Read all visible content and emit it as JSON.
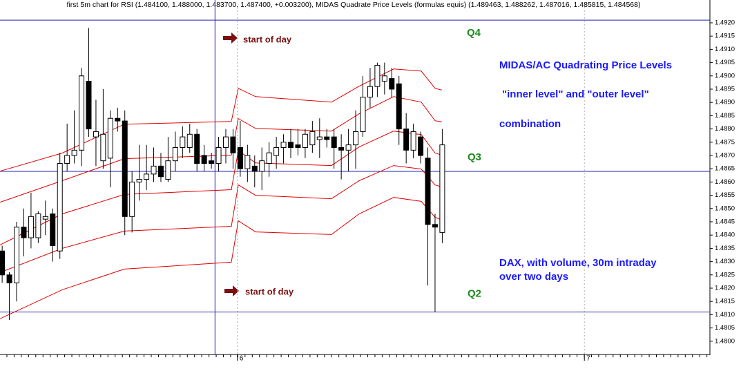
{
  "chart_data": {
    "type": "candlestick",
    "title": "first 5m chart for RSI (1.484100, 1.488000, 1.483700, 1.487400, +0.003200), MIDAS Quadrate Price Levels (formulas equis) (1.489463, 1.488262, 1.487016, 1.485815, 1.484568)",
    "categories": [
      null,
      null,
      null,
      null,
      null,
      null,
      null,
      null,
      null,
      null,
      null,
      null,
      null,
      null,
      null,
      null,
      null,
      null,
      null,
      null,
      null,
      null,
      null,
      null,
      null,
      null,
      null,
      null,
      null,
      null,
      null,
      null,
      null,
      null,
      null,
      null,
      null,
      null,
      null,
      null,
      null,
      null,
      null,
      null,
      null,
      null,
      null,
      null,
      null,
      null,
      null,
      null,
      null,
      null,
      null,
      null,
      null,
      null,
      null,
      null,
      null,
      null
    ],
    "open": [
      1.4834,
      1.4825,
      1.4822,
      1.4843,
      1.4839,
      1.4839,
      1.4846,
      1.4848,
      1.4834,
      1.4867,
      1.487,
      1.4872,
      1.4898,
      1.4877,
      1.4868,
      1.4869,
      1.4884,
      1.4883,
      1.4847,
      1.486,
      1.4861,
      1.4863,
      1.4866,
      1.4861,
      1.4868,
      1.4873,
      1.4873,
      1.4878,
      1.487,
      1.4868,
      1.4867,
      1.4873,
      1.4877,
      1.4873,
      1.4865,
      1.4866,
      1.4864,
      1.4867,
      1.487,
      1.4873,
      1.4875,
      1.4874,
      1.4873,
      1.4874,
      1.4876,
      1.4877,
      1.4877,
      1.4873,
      1.4872,
      1.4874,
      1.4879,
      1.4892,
      1.4896,
      1.4898,
      1.4899,
      1.4897,
      1.488,
      1.4872,
      1.4877,
      1.4869,
      1.4844,
      1.4841
    ],
    "high": [
      1.4836,
      1.4826,
      1.4845,
      1.485,
      1.4856,
      1.4849,
      1.4853,
      1.485,
      1.4871,
      1.4882,
      1.4887,
      1.4903,
      1.4918,
      1.4891,
      1.4895,
      1.4887,
      1.4888,
      1.4887,
      1.4864,
      1.4874,
      1.4874,
      1.4873,
      1.4871,
      1.4877,
      1.4879,
      1.4881,
      1.4882,
      1.488,
      1.4874,
      1.4871,
      1.4877,
      1.488,
      1.488,
      1.4883,
      1.4874,
      1.487,
      1.4873,
      1.4875,
      1.4877,
      1.4878,
      1.488,
      1.488,
      1.488,
      1.4883,
      1.4884,
      1.488,
      1.488,
      1.4878,
      1.488,
      1.4887,
      1.49,
      1.4903,
      1.4905,
      1.4905,
      1.4903,
      1.49,
      1.4886,
      1.4882,
      1.4879,
      1.4873,
      1.4848,
      1.488
    ],
    "low": [
      1.4822,
      1.4808,
      1.4815,
      1.4832,
      1.4835,
      1.4837,
      1.484,
      1.483,
      1.4831,
      1.4864,
      1.4867,
      1.4866,
      1.4877,
      1.4866,
      1.4865,
      1.4858,
      1.4879,
      1.484,
      1.4841,
      1.4853,
      1.4857,
      1.486,
      1.486,
      1.486,
      1.4864,
      1.4869,
      1.4871,
      1.4864,
      1.4864,
      1.4865,
      1.4864,
      1.4867,
      1.4865,
      1.4862,
      1.486,
      1.4858,
      1.4857,
      1.4862,
      1.4865,
      1.4867,
      1.4869,
      1.487,
      1.4869,
      1.4871,
      1.4869,
      1.4873,
      1.4865,
      1.4861,
      1.4864,
      1.4865,
      1.4877,
      1.4888,
      1.4892,
      1.4893,
      1.4892,
      1.4874,
      1.4867,
      1.4869,
      1.4867,
      1.4821,
      1.4811,
      1.4837
    ],
    "close": [
      1.4825,
      1.4822,
      1.4843,
      1.4839,
      1.4847,
      1.4848,
      1.4847,
      1.4836,
      1.4867,
      1.487,
      1.4872,
      1.49,
      1.488,
      1.4879,
      1.4878,
      1.4884,
      1.4883,
      1.4847,
      1.486,
      1.4861,
      1.4863,
      1.4866,
      1.4862,
      1.4868,
      1.4873,
      1.4877,
      1.4878,
      1.4867,
      1.4867,
      1.4867,
      1.4873,
      1.4877,
      1.4871,
      1.4865,
      1.487,
      1.4864,
      1.4868,
      1.4871,
      1.4873,
      1.4875,
      1.4873,
      1.4873,
      1.4878,
      1.4879,
      1.4877,
      1.4876,
      1.4873,
      1.4872,
      1.4874,
      1.4879,
      1.4892,
      1.4896,
      1.4904,
      1.49,
      1.4895,
      1.488,
      1.4872,
      1.4879,
      1.487,
      1.4844,
      1.4843,
      1.4874
    ],
    "candle_color": "#000000",
    "bands": [
      {
        "x": [
          -0.29,
          8.33,
          16.94,
          31.77,
          32.73,
          35.12,
          45.65,
          49.47,
          54.26,
          58.09,
          60.0,
          60.96
        ],
        "values": [
          1.48641,
          1.48709,
          1.48818,
          1.48828,
          1.48953,
          1.48922,
          1.48901,
          1.48961,
          1.49026,
          1.49018,
          1.48953,
          1.489463
        ]
      },
      {
        "x": [
          -0.29,
          8.33,
          16.94,
          31.77,
          32.73,
          35.12,
          45.65,
          49.47,
          54.26,
          58.09,
          60.0,
          60.96
        ],
        "values": [
          1.48524,
          1.48605,
          1.48688,
          1.48701,
          1.48839,
          1.48802,
          1.48792,
          1.48857,
          1.48922,
          1.48901,
          1.48831,
          1.488262
        ]
      },
      {
        "x": [
          -0.29,
          8.33,
          16.94,
          31.77,
          32.73,
          35.12,
          45.65,
          49.47,
          54.26,
          58.09,
          60.0,
          60.96
        ],
        "values": [
          1.48363,
          1.4848,
          1.48553,
          1.48571,
          1.48719,
          1.48672,
          1.48662,
          1.48732,
          1.48792,
          1.48779,
          1.48709,
          1.487016
        ]
      },
      {
        "x": [
          -0.29,
          8.33,
          16.94,
          31.77,
          32.73,
          35.12,
          45.65,
          49.47,
          54.26,
          58.09,
          60.0,
          60.96
        ],
        "values": [
          1.48259,
          1.4835,
          1.48415,
          1.48433,
          1.48589,
          1.4855,
          1.48537,
          1.48605,
          1.48662,
          1.48649,
          1.48589,
          1.485815
        ]
      },
      {
        "x": [
          -0.29,
          8.33,
          16.94,
          31.77,
          32.73,
          35.12,
          45.65,
          49.47,
          54.26,
          58.09,
          60.0,
          60.96
        ],
        "values": [
          1.48085,
          1.48194,
          1.48272,
          1.48298,
          1.48454,
          1.48412,
          1.48402,
          1.4848,
          1.48542,
          1.48527,
          1.48467,
          1.484568
        ]
      }
    ],
    "band_color": "#e00000",
    "levels": [
      1.4921,
      1.4864,
      1.4811
    ],
    "level_labels": [
      "Q4",
      "Q3",
      "Q2"
    ],
    "level_color": "#2020b0",
    "vline": 29.5,
    "annotations": [
      "start of day",
      "start of day",
      "MIDAS/AC Quadrating Price Levels",
      "\"inner level\" and \"outer level\"",
      "combination",
      "DAX, with volume, 30m intraday",
      "over two days"
    ],
    "xlim": [
      -0.3,
      98.1
    ],
    "xticks": [
      {
        "value": 32.6,
        "label": "6"
      },
      {
        "value": 80.7,
        "label": "7"
      }
    ],
    "ylim": [
      1.4795,
      1.4925
    ],
    "yticks": [
      {
        "value": 1.48,
        "label": "1.4800"
      },
      1.4805,
      {
        "value": 1.481,
        "label": "1.4810"
      },
      1.4815,
      {
        "value": 1.482,
        "label": "1.4820"
      },
      1.4825,
      {
        "value": 1.483,
        "label": "1.4830"
      },
      1.4835,
      {
        "value": 1.484,
        "label": "1.4840"
      },
      1.4845,
      {
        "value": 1.485,
        "label": "1.4850"
      },
      1.4855,
      {
        "value": 1.486,
        "label": "1.4860"
      },
      1.4865,
      {
        "value": 1.487,
        "label": "1.4870"
      },
      1.4875,
      {
        "value": 1.488,
        "label": "1.4880"
      },
      1.4885,
      {
        "value": 1.489,
        "label": "1.4890"
      },
      1.4895,
      {
        "value": 1.49,
        "label": "1.4900"
      },
      1.4905,
      {
        "value": 1.491,
        "label": "1.4910"
      },
      1.4915,
      {
        "value": 1.492,
        "label": "1.4920"
      }
    ]
  }
}
